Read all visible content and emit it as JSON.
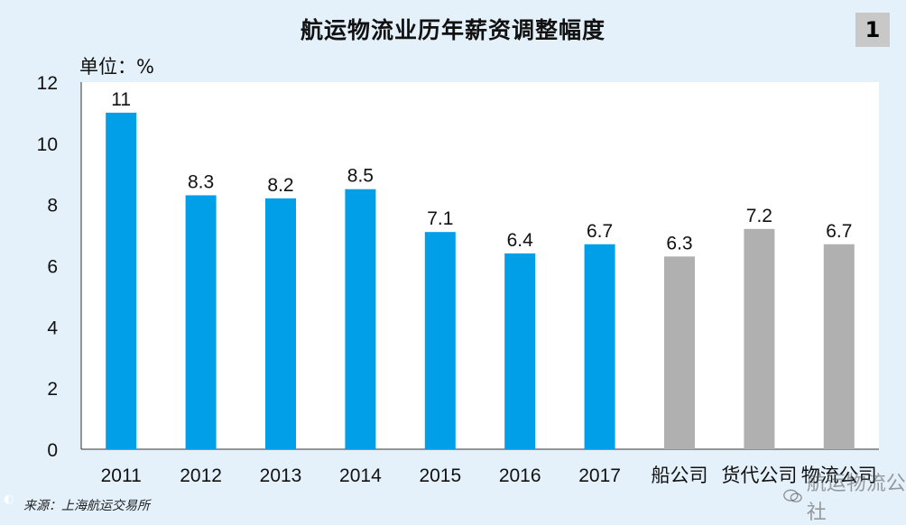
{
  "title": "航运物流业历年薪资调整幅度",
  "page_number": "1",
  "unit_label": "单位：%",
  "source": "来源：上海航运交易所",
  "watermark": "航运物流公社",
  "colors": {
    "primary": "#009fe8",
    "secondary": "#b0b0b0"
  },
  "chart_data": {
    "type": "bar",
    "title": "航运物流业历年薪资调整幅度",
    "xlabel": "",
    "ylabel": "单位：%",
    "ylim": [
      0,
      12
    ],
    "yticks": [
      0,
      2,
      4,
      6,
      8,
      10,
      12
    ],
    "categories": [
      "2011",
      "2012",
      "2013",
      "2014",
      "2015",
      "2016",
      "2017",
      "船公司",
      "货代公司",
      "物流公司"
    ],
    "values": [
      11,
      8.3,
      8.2,
      8.5,
      7.1,
      6.4,
      6.7,
      6.3,
      7.2,
      6.7
    ],
    "value_labels": [
      "11",
      "8.3",
      "8.2",
      "8.5",
      "7.1",
      "6.4",
      "6.7",
      "6.3",
      "7.2",
      "6.7"
    ],
    "bar_colors": [
      "#009fe8",
      "#009fe8",
      "#009fe8",
      "#009fe8",
      "#009fe8",
      "#009fe8",
      "#009fe8",
      "#b0b0b0",
      "#b0b0b0",
      "#b0b0b0"
    ]
  }
}
